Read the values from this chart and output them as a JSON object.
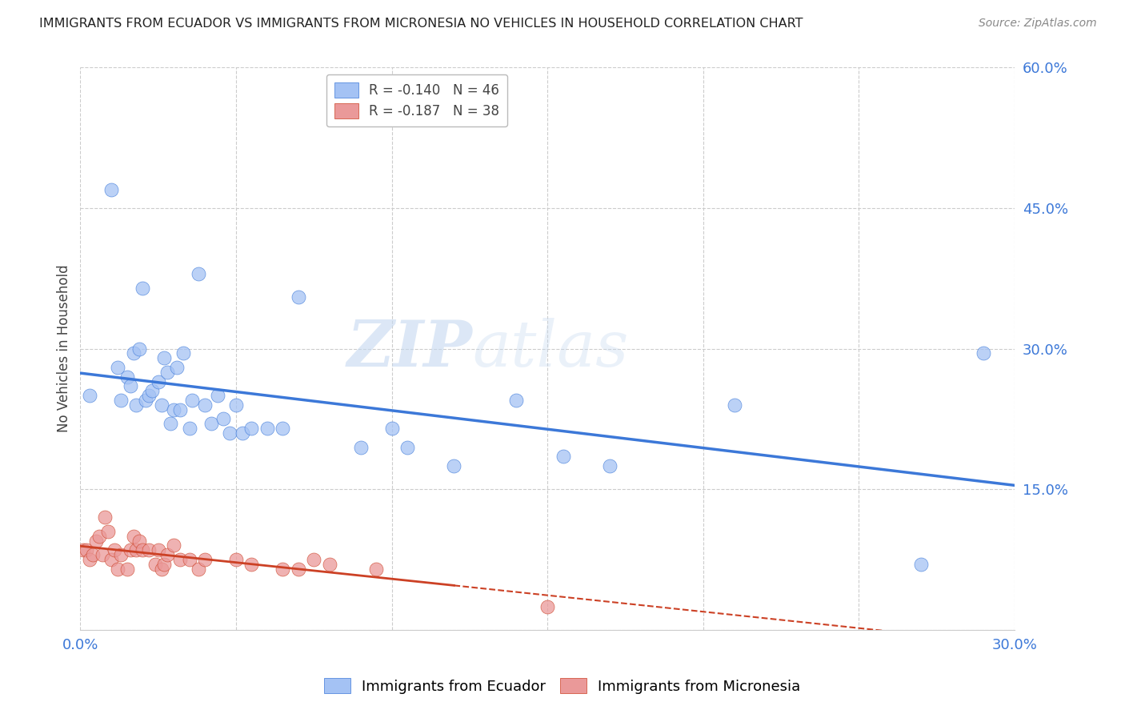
{
  "title": "IMMIGRANTS FROM ECUADOR VS IMMIGRANTS FROM MICRONESIA NO VEHICLES IN HOUSEHOLD CORRELATION CHART",
  "source": "Source: ZipAtlas.com",
  "ylabel": "No Vehicles in Household",
  "xlim": [
    0.0,
    0.3
  ],
  "ylim": [
    0.0,
    0.6
  ],
  "xticks": [
    0.0,
    0.05,
    0.1,
    0.15,
    0.2,
    0.25,
    0.3
  ],
  "xticklabels": [
    "0.0%",
    "",
    "",
    "",
    "",
    "",
    "30.0%"
  ],
  "yticks_right": [
    0.15,
    0.3,
    0.45,
    0.6
  ],
  "ytick_right_labels": [
    "15.0%",
    "30.0%",
    "45.0%",
    "60.0%"
  ],
  "ecuador_color": "#a4c2f4",
  "micronesia_color": "#ea9999",
  "ecuador_line_color": "#3c78d8",
  "micronesia_line_color": "#cc4125",
  "ecuador_R": -0.14,
  "ecuador_N": 46,
  "micronesia_R": -0.187,
  "micronesia_N": 38,
  "watermark_zip": "ZIP",
  "watermark_atlas": "atlas",
  "background_color": "#ffffff",
  "ecuador_x": [
    0.003,
    0.01,
    0.012,
    0.013,
    0.015,
    0.016,
    0.017,
    0.018,
    0.019,
    0.02,
    0.021,
    0.022,
    0.023,
    0.025,
    0.026,
    0.027,
    0.028,
    0.029,
    0.03,
    0.031,
    0.032,
    0.033,
    0.035,
    0.036,
    0.038,
    0.04,
    0.042,
    0.044,
    0.046,
    0.048,
    0.05,
    0.052,
    0.055,
    0.06,
    0.065,
    0.07,
    0.09,
    0.1,
    0.105,
    0.12,
    0.14,
    0.155,
    0.17,
    0.21,
    0.27,
    0.29
  ],
  "ecuador_y": [
    0.25,
    0.47,
    0.28,
    0.245,
    0.27,
    0.26,
    0.295,
    0.24,
    0.3,
    0.365,
    0.245,
    0.25,
    0.255,
    0.265,
    0.24,
    0.29,
    0.275,
    0.22,
    0.235,
    0.28,
    0.235,
    0.295,
    0.215,
    0.245,
    0.38,
    0.24,
    0.22,
    0.25,
    0.225,
    0.21,
    0.24,
    0.21,
    0.215,
    0.215,
    0.215,
    0.355,
    0.195,
    0.215,
    0.195,
    0.175,
    0.245,
    0.185,
    0.175,
    0.24,
    0.07,
    0.295
  ],
  "micronesia_x": [
    0.001,
    0.002,
    0.003,
    0.004,
    0.005,
    0.006,
    0.007,
    0.008,
    0.009,
    0.01,
    0.011,
    0.012,
    0.013,
    0.015,
    0.016,
    0.017,
    0.018,
    0.019,
    0.02,
    0.022,
    0.024,
    0.025,
    0.026,
    0.027,
    0.028,
    0.03,
    0.032,
    0.035,
    0.038,
    0.04,
    0.05,
    0.055,
    0.065,
    0.07,
    0.075,
    0.08,
    0.095,
    0.15
  ],
  "micronesia_y": [
    0.085,
    0.085,
    0.075,
    0.08,
    0.095,
    0.1,
    0.08,
    0.12,
    0.105,
    0.075,
    0.085,
    0.065,
    0.08,
    0.065,
    0.085,
    0.1,
    0.085,
    0.095,
    0.085,
    0.085,
    0.07,
    0.085,
    0.065,
    0.07,
    0.08,
    0.09,
    0.075,
    0.075,
    0.065,
    0.075,
    0.075,
    0.07,
    0.065,
    0.065,
    0.075,
    0.07,
    0.065,
    0.025
  ]
}
